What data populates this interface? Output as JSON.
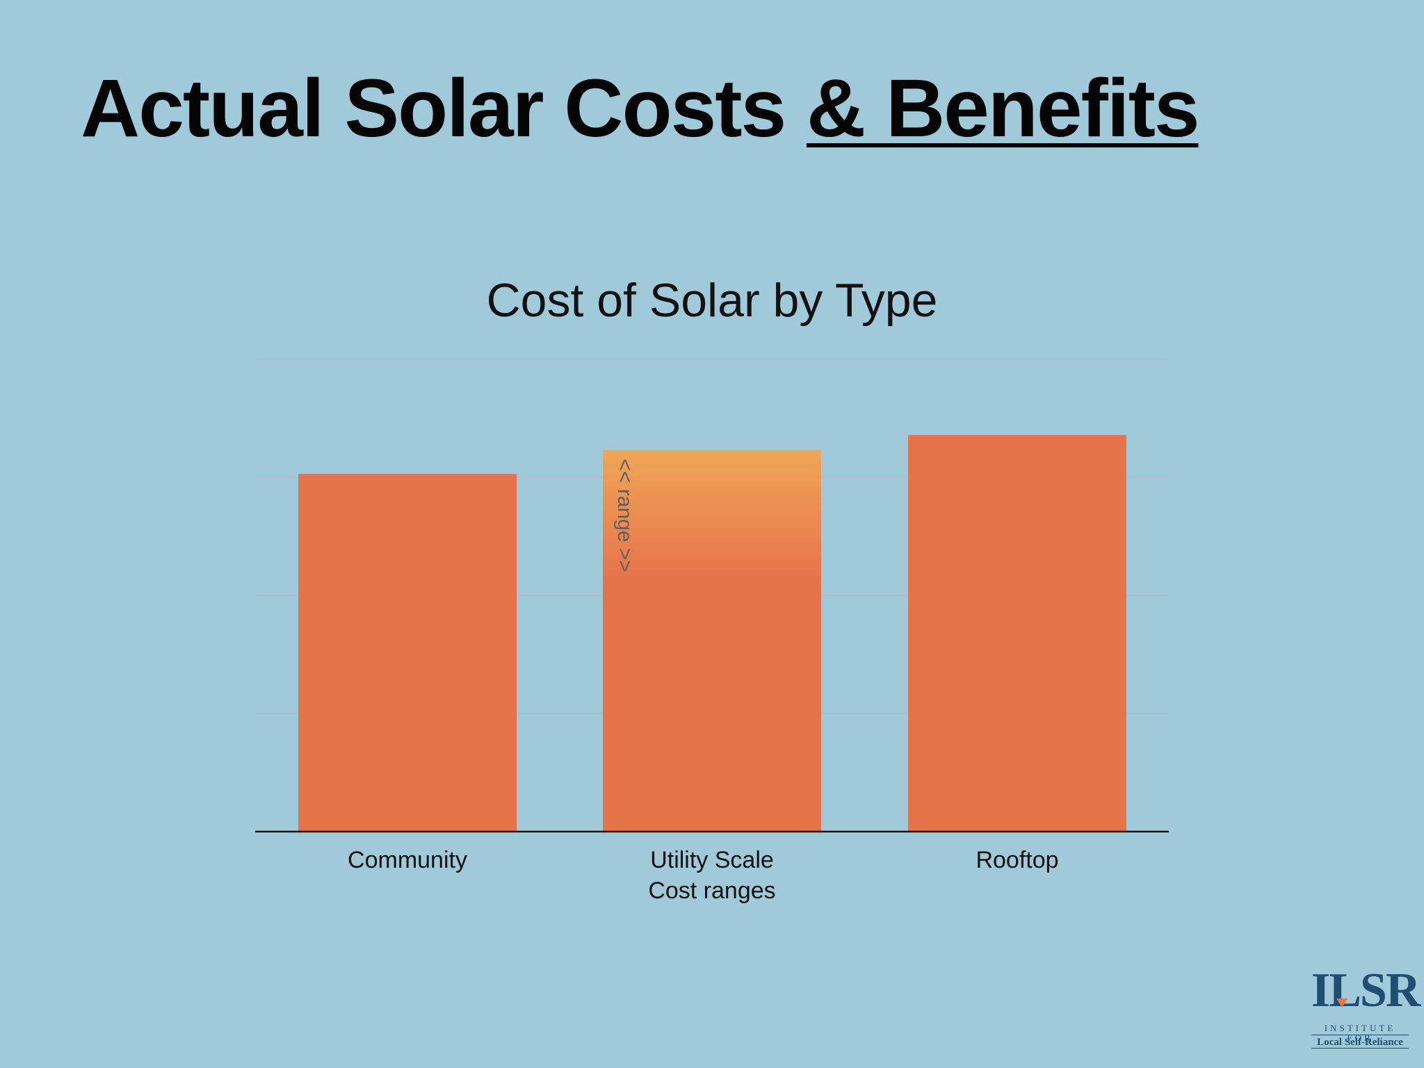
{
  "slide": {
    "title_main": "Actual Solar Costs",
    "title_emphasis": "& Benefits"
  },
  "logo": {
    "mark": "ILSR",
    "line1": "INSTITUTE FOR",
    "line2": "Local Self-Reliance"
  },
  "colors": {
    "background": "#a0cad9",
    "bar": "#e6744b",
    "range_top": "#f0a656",
    "gridline": "#b8b8c0",
    "axis": "#111111"
  },
  "chart_data": {
    "type": "bar",
    "title": "Cost of Solar by Type",
    "xlabel": "",
    "ylabel": "",
    "categories": [
      [
        "Community"
      ],
      [
        "Utility Scale",
        "Cost ranges"
      ],
      [
        "Rooftop"
      ]
    ],
    "values": [
      3.03,
      3.23,
      3.36
    ],
    "range": {
      "category_index": 1,
      "low": 2.15,
      "high": 3.23,
      "label": "<< range >>"
    },
    "ylim": [
      0,
      4
    ],
    "yticks": [
      0,
      1,
      2,
      3,
      4
    ],
    "grid": true,
    "legend": "none"
  }
}
